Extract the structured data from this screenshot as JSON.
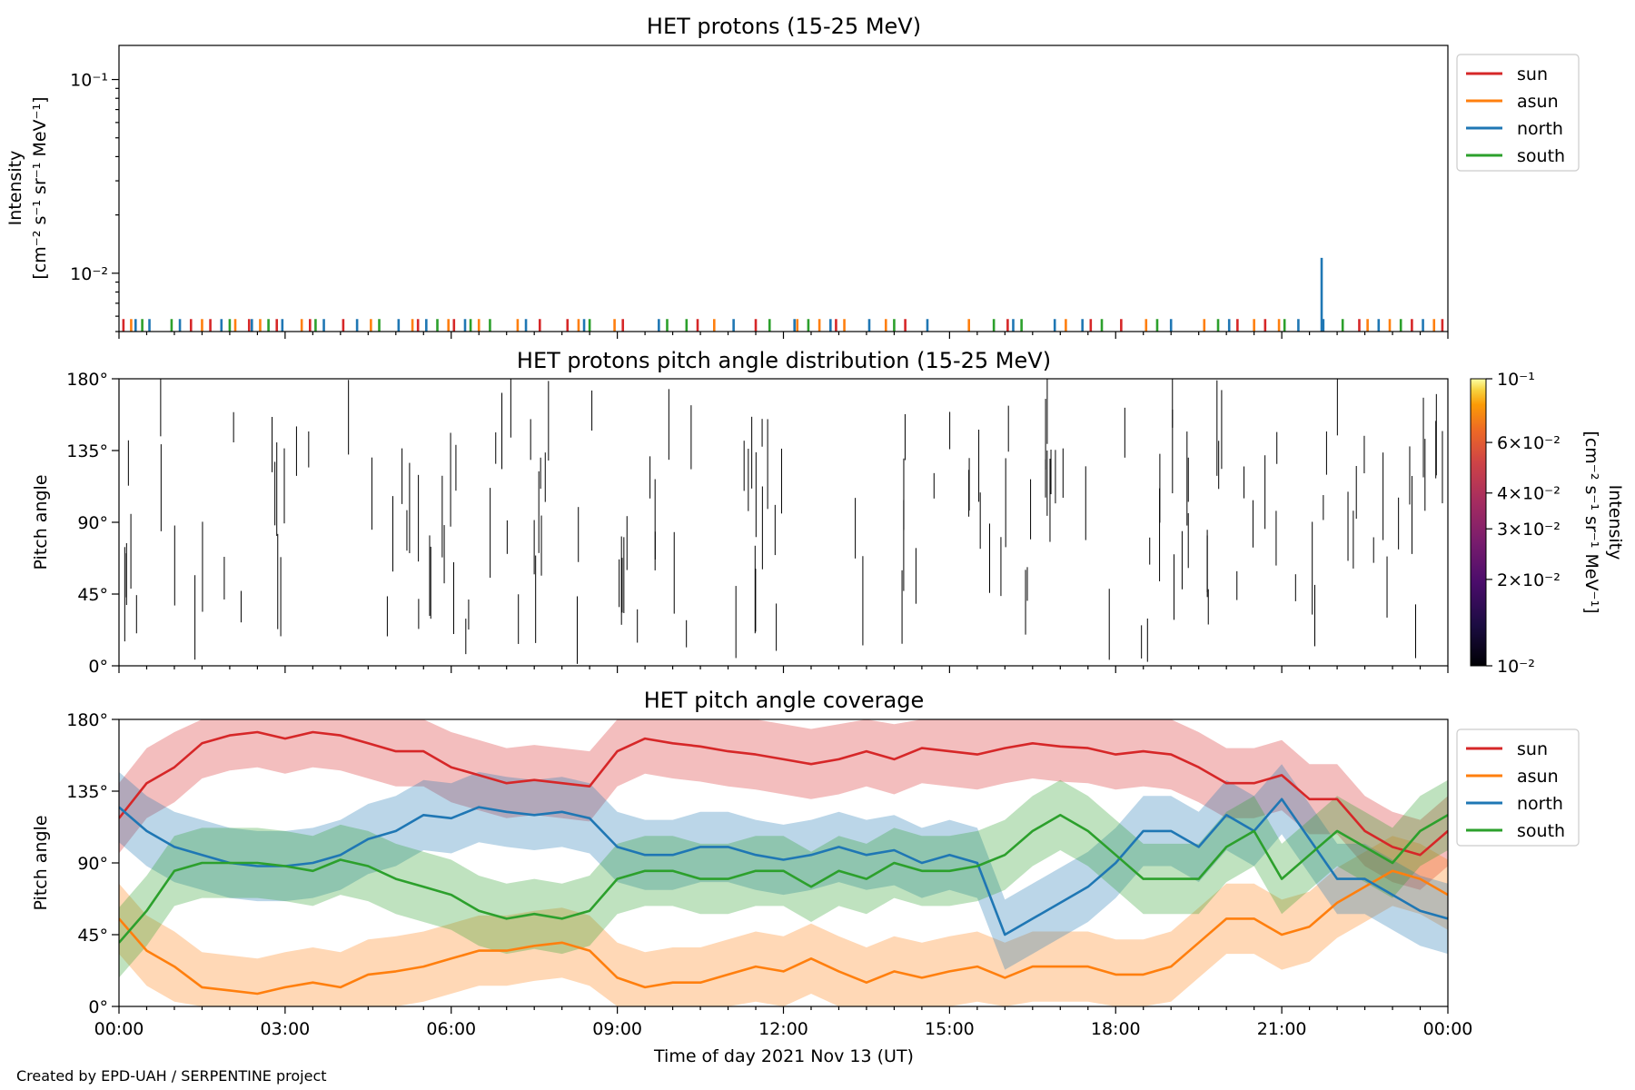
{
  "figure": {
    "credit": "Created by EPD-UAH / SERPENTINE project",
    "xlabel": "Time of day 2021 Nov 13 (UT)",
    "xticks": [
      "00:00",
      "03:00",
      "06:00",
      "09:00",
      "12:00",
      "15:00",
      "18:00",
      "21:00",
      "00:00"
    ]
  },
  "colors": {
    "sun": "#d62728",
    "asun": "#ff7f0e",
    "north": "#1f77b4",
    "south": "#2ca02c"
  },
  "chart_data": [
    {
      "type": "bar",
      "title": "HET protons (15-25 MeV)",
      "ylabel_line1": "Intensity",
      "ylabel_line2": "[cm⁻² s⁻¹ sr⁻¹ MeV⁻¹]",
      "yscale": "log",
      "ylim": [
        0.005,
        0.15
      ],
      "yticks": [
        {
          "value": 0.1,
          "label": "10⁻¹"
        },
        {
          "value": 0.01,
          "label": "10⁻²"
        }
      ],
      "xlim_hours": [
        0,
        24
      ],
      "legend": [
        "sun",
        "asun",
        "north",
        "south"
      ],
      "legend_position": "outside right, top",
      "baseline_level": 0.0058,
      "series": [
        {
          "name": "sun",
          "x_hours": [
            0.08,
            1.3,
            1.65,
            2.35,
            2.85,
            3.45,
            4.05,
            5.4,
            6.05,
            7.6,
            8.1,
            9.1,
            10.45,
            11.5,
            12.95,
            14.2,
            16.05,
            17.55,
            18.1,
            20.2,
            20.7,
            22.4,
            23.35,
            23.9
          ],
          "values": [
            0.0058,
            0.0058,
            0.0058,
            0.0058,
            0.0058,
            0.0058,
            0.0058,
            0.0058,
            0.0058,
            0.0058,
            0.0058,
            0.0058,
            0.0058,
            0.0058,
            0.0058,
            0.0058,
            0.0058,
            0.0058,
            0.0058,
            0.0058,
            0.0058,
            0.0058,
            0.0058,
            0.0058
          ]
        },
        {
          "name": "asun",
          "x_hours": [
            0.22,
            1.5,
            2.1,
            2.55,
            3.3,
            4.55,
            5.3,
            5.95,
            6.5,
            7.2,
            8.3,
            8.95,
            10.75,
            12.25,
            12.65,
            13.1,
            13.85,
            15.35,
            17.1,
            18.55,
            19.6,
            20.5,
            20.95,
            22.55,
            22.95,
            23.75
          ],
          "values": [
            0.0058,
            0.0058,
            0.0058,
            0.0058,
            0.0058,
            0.0058,
            0.0058,
            0.0058,
            0.0058,
            0.0058,
            0.0058,
            0.0058,
            0.0058,
            0.0058,
            0.0058,
            0.0058,
            0.0058,
            0.0058,
            0.0058,
            0.0058,
            0.0058,
            0.0058,
            0.0058,
            0.0058,
            0.0058,
            0.0058
          ]
        },
        {
          "name": "north",
          "x_hours": [
            0.3,
            0.55,
            1.1,
            1.85,
            2.4,
            2.95,
            3.7,
            4.3,
            5.05,
            5.55,
            6.25,
            7.35,
            8.4,
            9.75,
            11.1,
            12.2,
            12.85,
            13.55,
            14.6,
            16.15,
            16.9,
            17.4,
            19.0,
            20.05,
            21.3,
            21.75,
            22.75,
            23.55
          ],
          "values": [
            0.0058,
            0.0058,
            0.0058,
            0.0058,
            0.0058,
            0.0058,
            0.0058,
            0.0058,
            0.0058,
            0.0058,
            0.0058,
            0.0058,
            0.0058,
            0.0058,
            0.0058,
            0.0058,
            0.0058,
            0.0058,
            0.0058,
            0.0058,
            0.0058,
            0.0058,
            0.0058,
            0.0058,
            0.0058,
            0.0058,
            0.0058,
            0.0058
          ]
        },
        {
          "name": "south",
          "x_hours": [
            0.42,
            0.95,
            2.0,
            2.7,
            3.55,
            4.7,
            5.75,
            6.35,
            6.7,
            8.5,
            9.9,
            10.25,
            11.75,
            12.45,
            14.0,
            15.8,
            16.3,
            17.75,
            18.75,
            19.85,
            21.05,
            22.1,
            23.15
          ],
          "values": [
            0.0058,
            0.0058,
            0.0058,
            0.0058,
            0.0058,
            0.0058,
            0.0058,
            0.0058,
            0.0058,
            0.0058,
            0.0058,
            0.0058,
            0.0058,
            0.0058,
            0.0058,
            0.0058,
            0.0058,
            0.0058,
            0.0058,
            0.0058,
            0.0058,
            0.0058,
            0.0058
          ]
        }
      ],
      "spike": {
        "series": "north",
        "x_hours": 21.72,
        "value": 0.012
      }
    },
    {
      "type": "heatmap",
      "title": "HET protons pitch angle distribution (15-25 MeV)",
      "ylabel": "Pitch angle",
      "ylim": [
        0,
        180
      ],
      "yticks": [
        "0°",
        "45°",
        "90°",
        "135°",
        "180°"
      ],
      "yticks_values": [
        0,
        45,
        90,
        135,
        180
      ],
      "colorbar": {
        "label_line1": "Intensity",
        "label_line2": "[cm⁻² s⁻¹ sr⁻¹ MeV⁻¹]",
        "scale": "log",
        "range": [
          0.01,
          0.1
        ],
        "ticks": [
          {
            "value": 0.1,
            "label": "10⁻¹"
          },
          {
            "value": 0.06,
            "label": "6×10⁻²"
          },
          {
            "value": 0.04,
            "label": "4×10⁻²"
          },
          {
            "value": 0.03,
            "label": "3×10⁻²"
          },
          {
            "value": 0.02,
            "label": "2×10⁻²"
          },
          {
            "value": 0.01,
            "label": "10⁻²"
          }
        ],
        "colormap": "inferno"
      },
      "segments_count": 160
    },
    {
      "type": "area",
      "title": "HET pitch angle coverage",
      "ylabel": "Pitch angle",
      "ylim": [
        0,
        180
      ],
      "yticks": [
        "0°",
        "45°",
        "90°",
        "135°",
        "180°"
      ],
      "yticks_values": [
        0,
        45,
        90,
        135,
        180
      ],
      "legend": [
        "sun",
        "asun",
        "north",
        "south"
      ],
      "legend_position": "outside right, top",
      "x_hours": [
        0,
        0.5,
        1,
        1.5,
        2,
        2.5,
        3,
        3.5,
        4,
        4.5,
        5,
        5.5,
        6,
        6.5,
        7,
        7.5,
        8,
        8.5,
        9,
        9.5,
        10,
        10.5,
        11,
        11.5,
        12,
        12.5,
        13,
        13.5,
        14,
        14.5,
        15,
        15.5,
        16,
        16.5,
        17,
        17.5,
        18,
        18.5,
        19,
        19.5,
        20,
        20.5,
        21,
        21.5,
        22,
        22.5,
        23,
        23.5,
        24
      ],
      "series": [
        {
          "name": "sun",
          "values": [
            118,
            140,
            150,
            165,
            170,
            172,
            168,
            172,
            170,
            165,
            160,
            160,
            150,
            145,
            140,
            142,
            140,
            138,
            160,
            168,
            165,
            163,
            160,
            158,
            155,
            152,
            155,
            160,
            155,
            162,
            160,
            158,
            162,
            165,
            163,
            162,
            158,
            160,
            158,
            150,
            140,
            140,
            145,
            130,
            130,
            110,
            100,
            95,
            110
          ],
          "band": 22
        },
        {
          "name": "asun",
          "values": [
            55,
            35,
            25,
            12,
            10,
            8,
            12,
            15,
            12,
            20,
            22,
            25,
            30,
            35,
            35,
            38,
            40,
            35,
            18,
            12,
            15,
            15,
            20,
            25,
            22,
            30,
            22,
            15,
            22,
            18,
            22,
            25,
            18,
            25,
            25,
            25,
            20,
            20,
            25,
            40,
            55,
            55,
            45,
            50,
            65,
            75,
            85,
            80,
            70
          ],
          "band": 22
        },
        {
          "name": "north",
          "values": [
            125,
            110,
            100,
            95,
            90,
            88,
            88,
            90,
            95,
            105,
            110,
            120,
            118,
            125,
            122,
            120,
            122,
            118,
            100,
            95,
            95,
            100,
            100,
            95,
            92,
            95,
            100,
            95,
            98,
            90,
            95,
            90,
            45,
            55,
            65,
            75,
            90,
            110,
            110,
            100,
            120,
            110,
            130,
            105,
            80,
            80,
            70,
            60,
            55
          ],
          "band": 22
        },
        {
          "name": "south",
          "values": [
            40,
            60,
            85,
            90,
            90,
            90,
            88,
            85,
            92,
            88,
            80,
            75,
            70,
            60,
            55,
            58,
            55,
            60,
            80,
            85,
            85,
            80,
            80,
            85,
            85,
            75,
            85,
            80,
            90,
            85,
            85,
            88,
            95,
            110,
            120,
            110,
            95,
            80,
            80,
            80,
            100,
            110,
            80,
            95,
            110,
            100,
            90,
            110,
            120
          ],
          "band": 22
        }
      ]
    }
  ]
}
